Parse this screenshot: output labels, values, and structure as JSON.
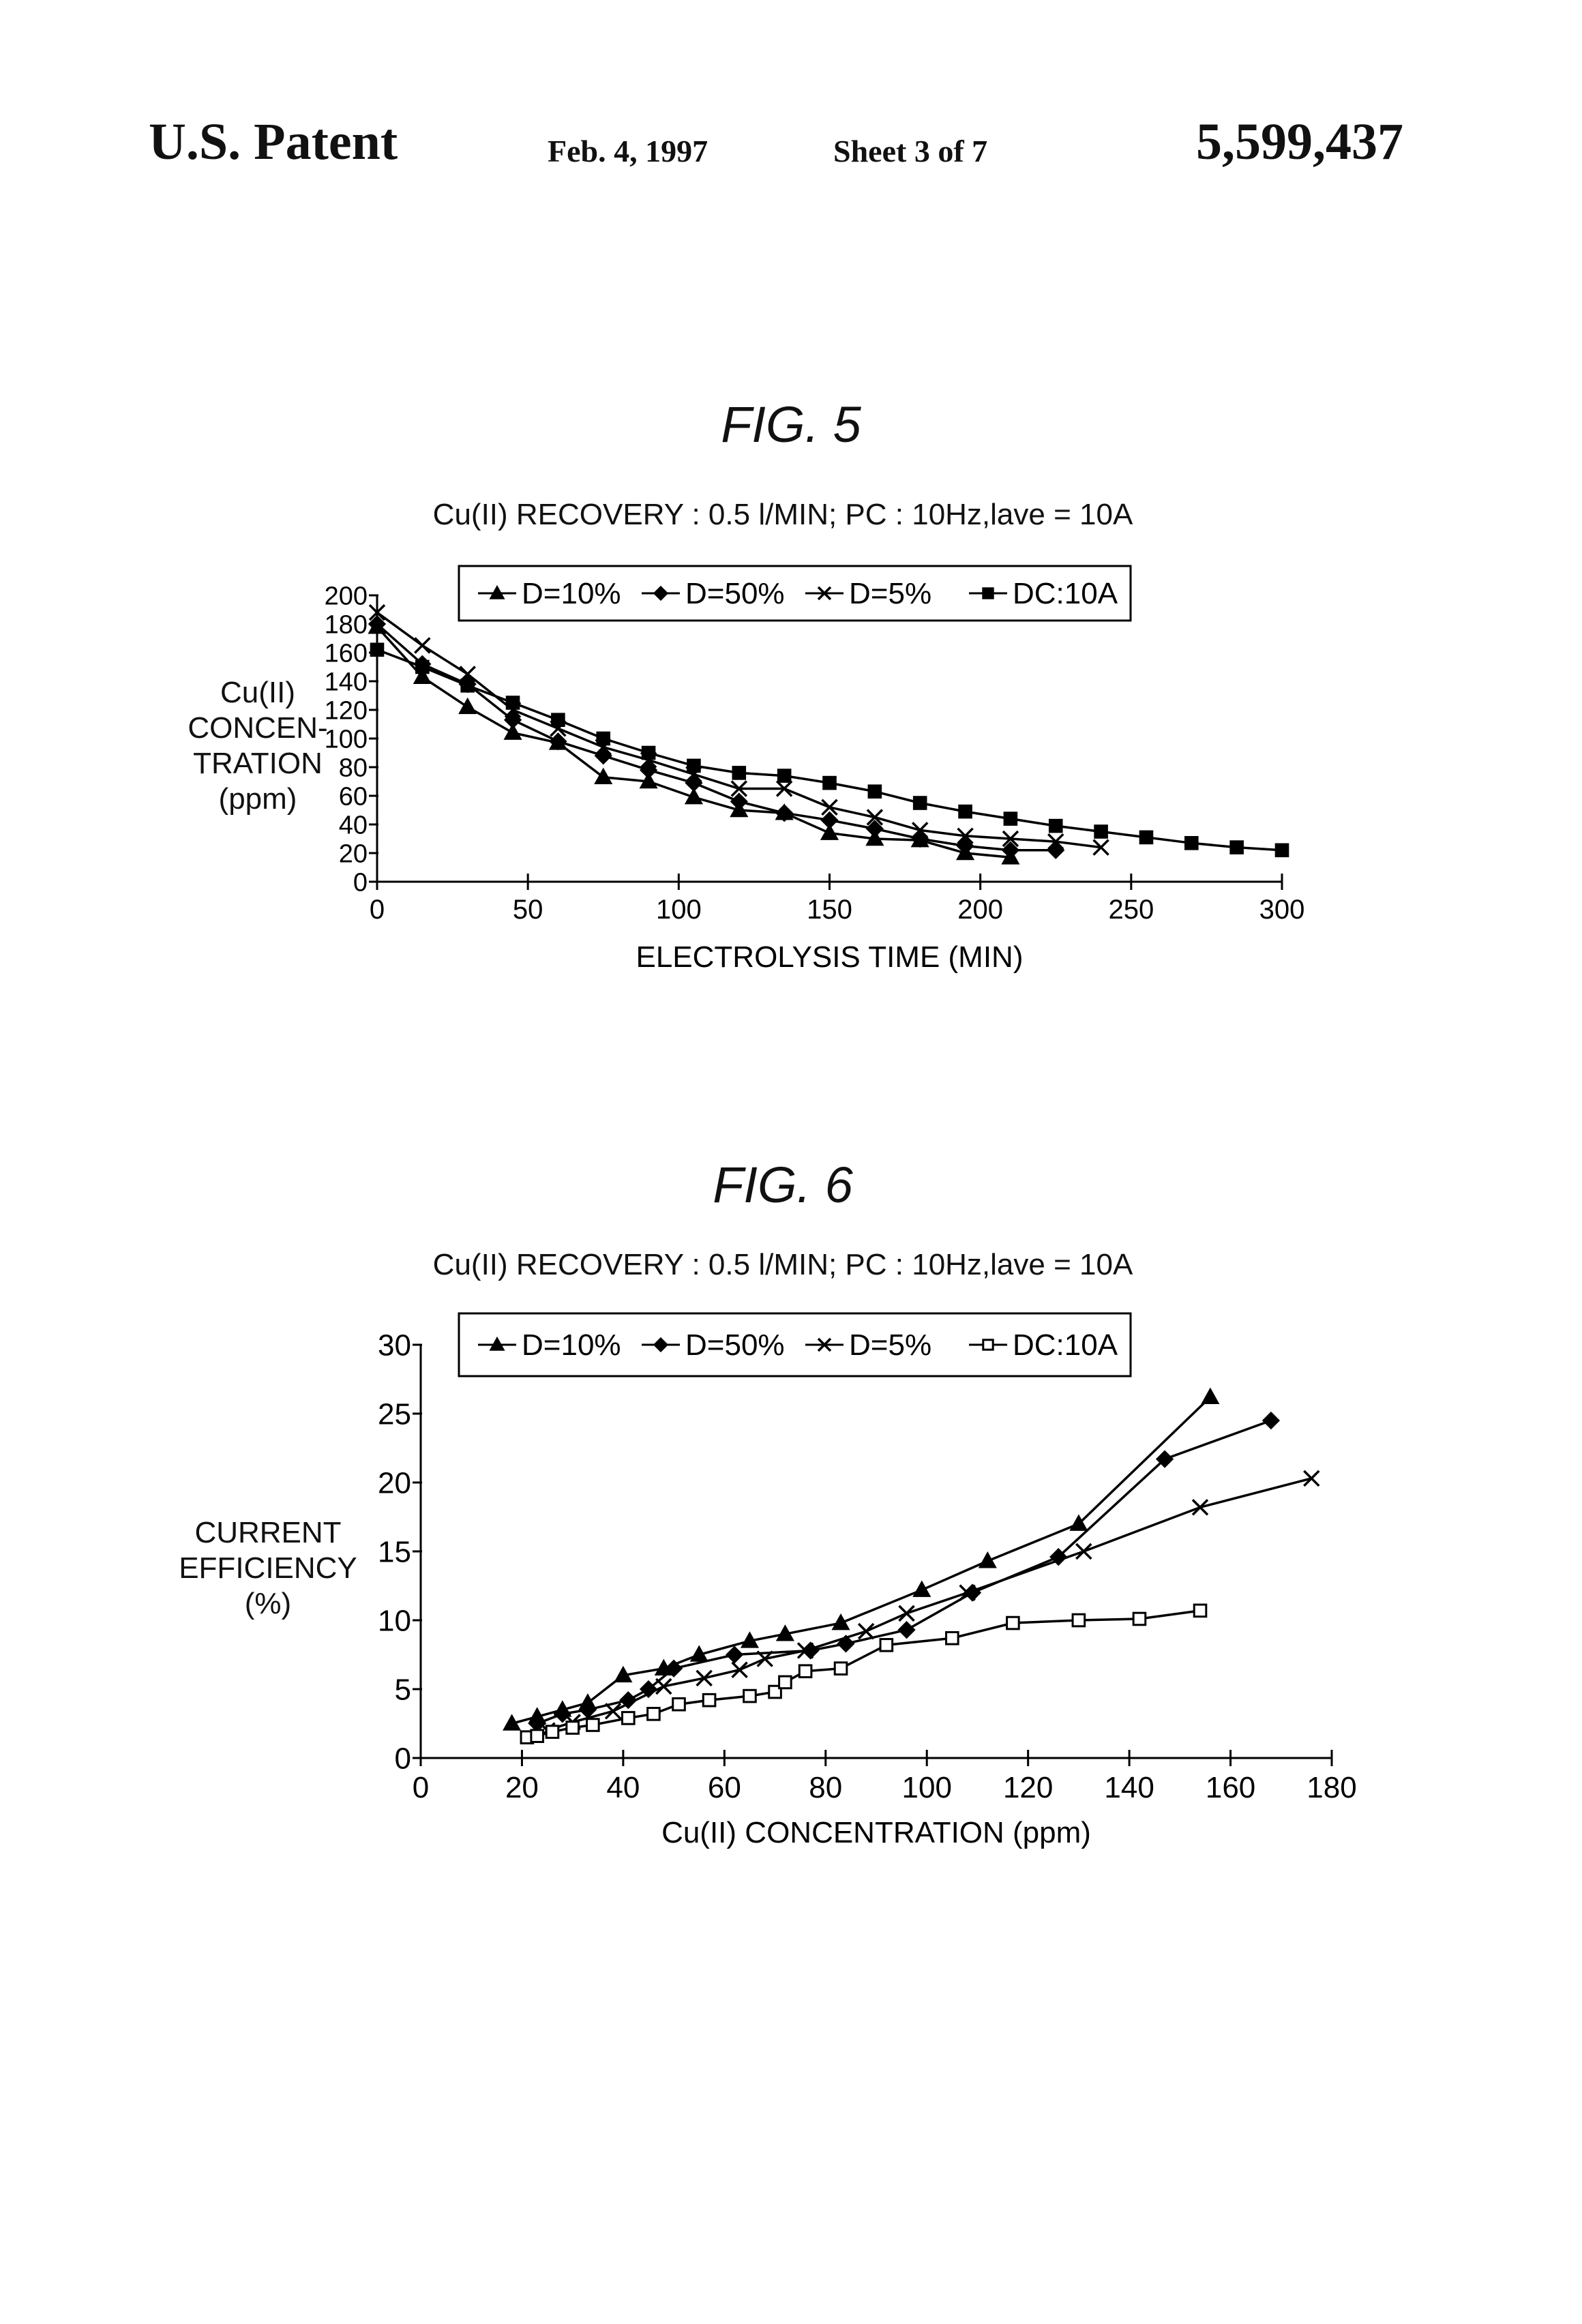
{
  "header": {
    "left": "U.S. Patent",
    "date": "Feb. 4, 1997",
    "sheet": "Sheet 3 of 7",
    "patent_number": "5,599,437"
  },
  "figures": {
    "fig5": {
      "title": "FIG. 5",
      "subtitle": "Cu(II) RECOVERY : 0.5 l/MIN; PC : 10Hz,lave = 10A",
      "ylabel_lines": [
        "Cu(II)",
        "CONCEN-",
        "TRATION",
        "(ppm)"
      ]
    },
    "fig6": {
      "title": "FIG. 6",
      "subtitle": "Cu(II) RECOVERY : 0.5 l/MIN; PC : 10Hz,lave = 10A",
      "ylabel_lines": [
        "CURRENT",
        "EFFICIENCY",
        "(%)"
      ]
    }
  },
  "chart_data": [
    {
      "type": "line",
      "title": "FIG. 5",
      "subtitle": "Cu(II) RECOVERY : 0.5 l/MIN; PC : 10Hz,lave = 10A",
      "xlabel": "ELECTROLYSIS TIME (MIN)",
      "ylabel": "Cu(II) CONCEN- TRATION (ppm)",
      "xlim": [
        0,
        300
      ],
      "ylim": [
        0,
        200
      ],
      "xticks": [
        0,
        50,
        100,
        150,
        200,
        250,
        300
      ],
      "yticks": [
        0,
        20,
        40,
        60,
        80,
        100,
        120,
        140,
        160,
        180,
        200
      ],
      "grid": false,
      "legend_position": "top",
      "series": [
        {
          "name": "D=10%",
          "marker": "triangle-filled",
          "x": [
            0,
            15,
            30,
            45,
            60,
            75,
            90,
            105,
            120,
            135,
            150,
            165,
            180,
            195,
            210
          ],
          "y": [
            178,
            143,
            122,
            104,
            97,
            73,
            70,
            59,
            50,
            48,
            34,
            30,
            29,
            20,
            17
          ]
        },
        {
          "name": "D=50%",
          "marker": "diamond-filled",
          "x": [
            0,
            15,
            30,
            45,
            60,
            75,
            90,
            105,
            120,
            135,
            150,
            165,
            180,
            195,
            210,
            225
          ],
          "y": [
            180,
            152,
            138,
            113,
            98,
            88,
            78,
            69,
            56,
            48,
            43,
            37,
            30,
            25,
            22,
            22
          ]
        },
        {
          "name": "D=5%",
          "marker": "x",
          "x": [
            0,
            15,
            30,
            45,
            60,
            75,
            90,
            105,
            120,
            135,
            150,
            165,
            180,
            195,
            210,
            225,
            240
          ],
          "y": [
            188,
            165,
            145,
            120,
            107,
            94,
            85,
            75,
            65,
            65,
            52,
            45,
            36,
            32,
            30,
            28,
            24
          ]
        },
        {
          "name": "DC:10A",
          "marker": "square-filled",
          "x": [
            0,
            15,
            30,
            45,
            60,
            75,
            90,
            105,
            120,
            135,
            150,
            165,
            180,
            195,
            210,
            225,
            240,
            255,
            270,
            285,
            300
          ],
          "y": [
            162,
            150,
            137,
            125,
            113,
            100,
            90,
            81,
            76,
            74,
            69,
            63,
            55,
            49,
            44,
            39,
            35,
            31,
            27,
            24,
            22
          ]
        }
      ]
    },
    {
      "type": "line",
      "title": "FIG. 6",
      "subtitle": "Cu(II) RECOVERY : 0.5 l/MIN; PC : 10Hz,lave = 10A",
      "xlabel": "Cu(II) CONCENTRATION (ppm)",
      "ylabel": "CURRENT EFFICIENCY (%)",
      "xlim": [
        0,
        180
      ],
      "ylim": [
        0,
        30
      ],
      "xticks": [
        0,
        20,
        40,
        60,
        80,
        100,
        120,
        140,
        160,
        180
      ],
      "yticks": [
        0,
        5,
        10,
        15,
        20,
        25,
        30
      ],
      "grid": false,
      "legend_position": "top",
      "series": [
        {
          "name": "D=10%",
          "marker": "triangle-filled",
          "x": [
            18,
            23,
            28,
            33,
            40,
            48,
            55,
            65,
            72,
            83,
            99,
            112,
            130,
            156
          ],
          "y": [
            2.5,
            3.0,
            3.5,
            4.0,
            6.0,
            6.5,
            7.5,
            8.5,
            9.0,
            9.8,
            12.2,
            14.3,
            17.0,
            26.2
          ]
        },
        {
          "name": "D=50%",
          "marker": "diamond-filled",
          "x": [
            23,
            28,
            33,
            41,
            45,
            50,
            62,
            77,
            84,
            96,
            109,
            126,
            147,
            168
          ],
          "y": [
            2.5,
            3.2,
            3.5,
            4.2,
            5.0,
            6.5,
            7.5,
            7.8,
            8.3,
            9.3,
            12.0,
            14.6,
            21.7,
            24.5
          ]
        },
        {
          "name": "D=5%",
          "marker": "x",
          "x": [
            25,
            30,
            38,
            48,
            56,
            63,
            68,
            76,
            88,
            96,
            108,
            131,
            154,
            176
          ],
          "y": [
            2.0,
            2.6,
            3.4,
            5.2,
            5.8,
            6.4,
            7.2,
            7.8,
            9.2,
            10.5,
            12.0,
            15.0,
            18.2,
            20.3
          ]
        },
        {
          "name": "DC:10A",
          "marker": "square-open",
          "x": [
            21,
            23,
            26,
            30,
            34,
            41,
            46,
            51,
            57,
            65,
            70,
            72,
            76,
            83,
            92,
            105,
            117,
            130,
            142,
            154
          ],
          "y": [
            1.5,
            1.6,
            1.9,
            2.2,
            2.4,
            2.9,
            3.2,
            3.9,
            4.2,
            4.5,
            4.8,
            5.5,
            6.3,
            6.5,
            8.2,
            8.7,
            9.8,
            10.0,
            10.1,
            10.7
          ]
        }
      ]
    }
  ]
}
